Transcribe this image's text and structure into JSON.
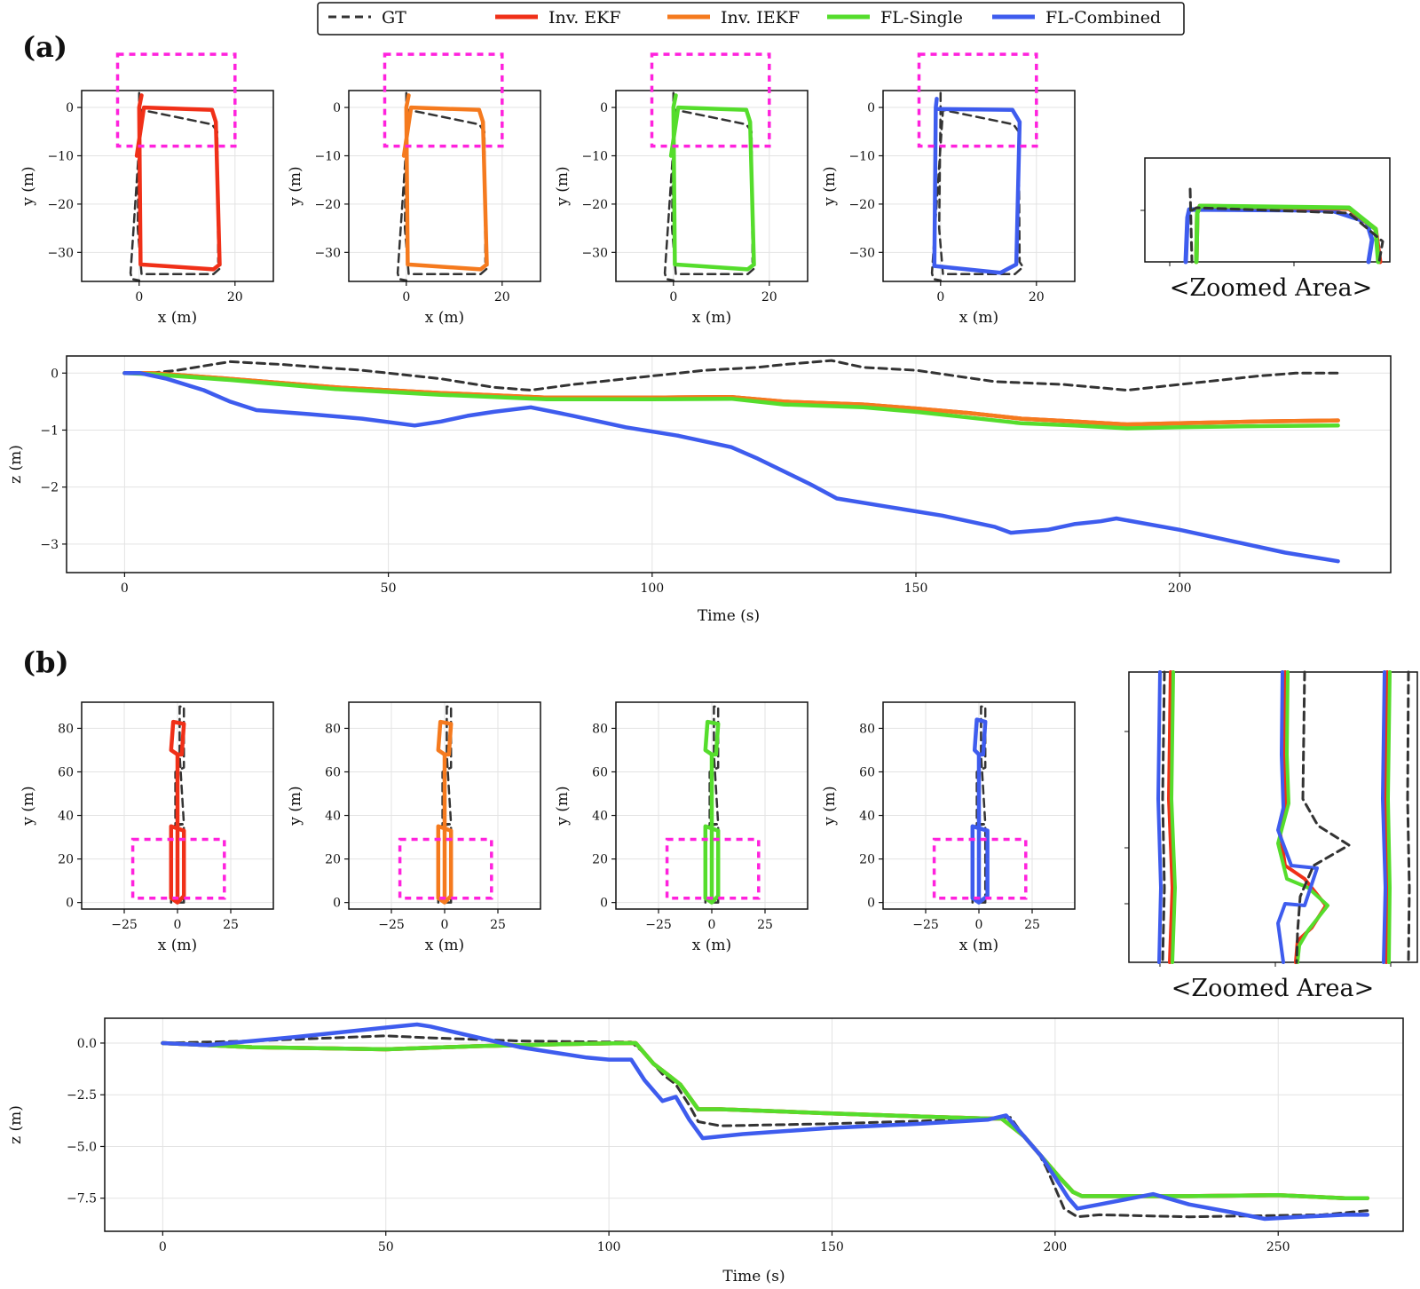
{
  "legend": [
    {
      "label": "GT",
      "color": "#333333",
      "dash": true
    },
    {
      "label": "Inv. EKF",
      "color": "#f03018",
      "dash": false
    },
    {
      "label": "Inv. IEKF",
      "color": "#f57a1e",
      "dash": false
    },
    {
      "label": "FL-Single",
      "color": "#55dd2c",
      "dash": false
    },
    {
      "label": "FL-Combined",
      "color": "#3e5cee",
      "dash": false
    }
  ],
  "panel_a": {
    "label": "(a)",
    "zoom_caption": "<Zoomed Area>",
    "xy_axes": {
      "xlabel": "x (m)",
      "ylabel": "y (m)",
      "xticks": [
        "0",
        "20"
      ],
      "yticks": [
        "0",
        "−10",
        "−20",
        "−30"
      ]
    },
    "z_axes": {
      "xlabel": "Time (s)",
      "ylabel": "z (m)",
      "xticks": [
        "0",
        "50",
        "100",
        "150",
        "200"
      ],
      "yticks": [
        "0",
        "−1",
        "−2",
        "−3"
      ]
    }
  },
  "panel_b": {
    "label": "(b)",
    "zoom_caption": "<Zoomed Area>",
    "xy_axes": {
      "xlabel": "x (m)",
      "ylabel": "y (m)",
      "xticks": [
        "−25",
        "0",
        "25"
      ],
      "yticks": [
        "0",
        "20",
        "40",
        "60",
        "80"
      ]
    },
    "z_axes": {
      "xlabel": "Time (s)",
      "ylabel": "z (m)",
      "xticks": [
        "0",
        "50",
        "100",
        "150",
        "200",
        "250"
      ],
      "yticks": [
        "0.0",
        "−2.5",
        "−5.0",
        "−7.5"
      ]
    }
  },
  "chart_data": [
    {
      "id": "a_xy",
      "type": "line",
      "xlabel": "x (m)",
      "ylabel": "y (m)",
      "xlim": [
        -12,
        28
      ],
      "ylim": [
        -36,
        3.5
      ],
      "subplots_series": [
        "Inv. EKF",
        "Inv. IEKF",
        "FL-Single",
        "FL-Combined"
      ],
      "series": [
        {
          "name": "GT",
          "x": [
            0,
            0,
            -0.3,
            0.5,
            15.5,
            17.2,
            16.5,
            16.3,
            15.2,
            0.5,
            -1.8,
            -1.5,
            0
          ],
          "y": [
            3,
            0,
            -25,
            -34.5,
            -34.5,
            -33,
            -32,
            -5,
            -3.5,
            -0.5,
            -34.3,
            -35.5,
            -35.8
          ]
        },
        {
          "name": "Inv. EKF",
          "x": [
            0.5,
            0,
            0.3,
            15.5,
            16.8,
            16,
            15.2,
            1,
            -0.5
          ],
          "y": [
            2.5,
            0,
            -32.5,
            -33.5,
            -32.5,
            -3,
            -0.5,
            0,
            -10
          ]
        },
        {
          "name": "Inv. IEKF",
          "x": [
            0.5,
            0,
            0.3,
            15.5,
            16.8,
            16,
            15.2,
            1,
            -0.5
          ],
          "y": [
            2.5,
            0,
            -32.5,
            -33.5,
            -32.5,
            -3,
            -0.5,
            0,
            -10
          ]
        },
        {
          "name": "FL-Single",
          "x": [
            0.5,
            0,
            0.3,
            15.5,
            16.8,
            16,
            15.2,
            1,
            -0.5
          ],
          "y": [
            2.5,
            0,
            -32.5,
            -33.5,
            -32.5,
            -3,
            -0.5,
            0,
            -10
          ]
        },
        {
          "name": "FL-Combined",
          "x": [
            -0.8,
            -1,
            -1.3,
            12.5,
            15.8,
            16.5,
            15,
            -0.5
          ],
          "y": [
            1.8,
            0,
            -32.8,
            -34.2,
            -32.5,
            -3,
            -0.5,
            -0.3
          ]
        }
      ]
    },
    {
      "id": "a_z",
      "type": "line",
      "xlabel": "Time (s)",
      "ylabel": "z (m)",
      "xlim": [
        -11,
        240
      ],
      "ylim": [
        -3.5,
        0.3
      ],
      "series": [
        {
          "name": "GT",
          "x": [
            0,
            5,
            10,
            20,
            30,
            40,
            45,
            50,
            60,
            70,
            77,
            85,
            100,
            110,
            120,
            125,
            134,
            140,
            150,
            165,
            178,
            190,
            200,
            210,
            215,
            222,
            230
          ],
          "y": [
            0,
            0,
            0.05,
            0.2,
            0.15,
            0.08,
            0.05,
            0,
            -0.1,
            -0.25,
            -0.3,
            -0.2,
            -0.05,
            0.05,
            0.1,
            0.15,
            0.22,
            0.1,
            0.05,
            -0.15,
            -0.2,
            -0.3,
            -0.2,
            -0.1,
            -0.05,
            0,
            0
          ]
        },
        {
          "name": "Inv. EKF",
          "x": [
            0,
            5,
            20,
            40,
            60,
            80,
            100,
            115,
            125,
            140,
            150,
            160,
            170,
            180,
            190,
            200,
            215,
            230
          ],
          "y": [
            0,
            0,
            -0.1,
            -0.25,
            -0.35,
            -0.43,
            -0.43,
            -0.42,
            -0.5,
            -0.55,
            -0.62,
            -0.7,
            -0.8,
            -0.85,
            -0.9,
            -0.88,
            -0.85,
            -0.83
          ]
        },
        {
          "name": "Inv. IEKF",
          "x": [
            0,
            5,
            20,
            40,
            60,
            80,
            100,
            115,
            125,
            140,
            150,
            160,
            170,
            180,
            190,
            200,
            215,
            230
          ],
          "y": [
            0,
            0,
            -0.1,
            -0.25,
            -0.35,
            -0.43,
            -0.43,
            -0.42,
            -0.5,
            -0.55,
            -0.62,
            -0.7,
            -0.8,
            -0.85,
            -0.9,
            -0.88,
            -0.85,
            -0.83
          ]
        },
        {
          "name": "FL-Single",
          "x": [
            0,
            5,
            20,
            40,
            60,
            80,
            100,
            115,
            125,
            140,
            150,
            160,
            170,
            180,
            190,
            200,
            215,
            230
          ],
          "y": [
            0,
            -0.02,
            -0.12,
            -0.28,
            -0.38,
            -0.46,
            -0.46,
            -0.45,
            -0.55,
            -0.6,
            -0.68,
            -0.78,
            -0.88,
            -0.92,
            -0.97,
            -0.95,
            -0.93,
            -0.92
          ]
        },
        {
          "name": "FL-Combined",
          "x": [
            0,
            3,
            8,
            15,
            20,
            25,
            35,
            45,
            55,
            60,
            65,
            70,
            77,
            85,
            95,
            105,
            115,
            120,
            130,
            135,
            145,
            155,
            165,
            168,
            175,
            180,
            185,
            188,
            200,
            210,
            220,
            230
          ],
          "y": [
            0,
            0,
            -0.1,
            -0.3,
            -0.5,
            -0.65,
            -0.72,
            -0.8,
            -0.92,
            -0.85,
            -0.75,
            -0.68,
            -0.6,
            -0.75,
            -0.95,
            -1.1,
            -1.3,
            -1.5,
            -1.95,
            -2.2,
            -2.35,
            -2.5,
            -2.7,
            -2.8,
            -2.75,
            -2.65,
            -2.6,
            -2.55,
            -2.75,
            -2.95,
            -3.15,
            -3.3
          ]
        }
      ]
    },
    {
      "id": "b_xy",
      "type": "line",
      "xlabel": "x (m)",
      "ylabel": "y (m)",
      "xlim": [
        -45,
        45
      ],
      "ylim": [
        -3,
        92
      ],
      "series": [
        {
          "name": "GT",
          "x": [
            3,
            3,
            -1,
            -1,
            3,
            3,
            1,
            1,
            3,
            -3,
            -3,
            3
          ],
          "y": [
            0,
            36,
            36,
            60,
            62,
            90,
            90,
            68,
            36,
            35,
            0,
            0
          ]
        },
        {
          "name": "Inv. EKF",
          "x": [
            0,
            3,
            3,
            -3,
            -3,
            0,
            0,
            -3,
            -2,
            3,
            2,
            0
          ],
          "y": [
            0,
            3,
            33,
            35,
            2,
            0,
            68,
            70,
            83,
            82,
            68,
            68
          ]
        },
        {
          "name": "Inv. IEKF",
          "x": [
            0,
            3,
            3,
            -3,
            -3,
            0,
            0,
            -3,
            -2,
            3,
            2,
            0
          ],
          "y": [
            0,
            3,
            33,
            35,
            2,
            0,
            68,
            70,
            83,
            82,
            68,
            68
          ]
        },
        {
          "name": "FL-Single",
          "x": [
            0,
            3,
            3,
            -3,
            -3,
            0,
            0,
            -3,
            -2,
            3,
            2,
            0
          ],
          "y": [
            0,
            3,
            33,
            35,
            2,
            0,
            68,
            70,
            83,
            82,
            68,
            68
          ]
        },
        {
          "name": "FL-Combined",
          "x": [
            0,
            4,
            4,
            -3,
            -3,
            0,
            0,
            -2,
            -1,
            3,
            2,
            0
          ],
          "y": [
            0,
            3,
            33,
            35,
            2,
            0,
            68,
            70,
            84,
            83,
            68,
            68
          ]
        }
      ]
    },
    {
      "id": "b_z",
      "type": "line",
      "xlabel": "Time (s)",
      "ylabel": "z (m)",
      "xlim": [
        -13,
        278
      ],
      "ylim": [
        -9.1,
        1.2
      ],
      "series": [
        {
          "name": "GT",
          "x": [
            0,
            20,
            50,
            60,
            80,
            100,
            105,
            108,
            112,
            115,
            118,
            120,
            125,
            150,
            180,
            188,
            190,
            193,
            196,
            198,
            200,
            202,
            205,
            210,
            230,
            260,
            270
          ],
          "y": [
            0,
            0.1,
            0.35,
            0.25,
            0.1,
            0.05,
            0.05,
            -0.5,
            -1.5,
            -2,
            -3,
            -3.8,
            -4,
            -3.9,
            -3.7,
            -3.6,
            -3.6,
            -4.5,
            -5.2,
            -6,
            -7,
            -8,
            -8.4,
            -8.3,
            -8.4,
            -8.3,
            -8.1
          ]
        },
        {
          "name": "Inv. EKF",
          "x": [
            0,
            20,
            50,
            70,
            90,
            104,
            106,
            110,
            113,
            116,
            120,
            125,
            150,
            170,
            185,
            188,
            193,
            197,
            201,
            204,
            206,
            210,
            230,
            250,
            265,
            270
          ],
          "y": [
            0,
            -0.2,
            -0.3,
            -0.15,
            -0.05,
            0,
            0,
            -1,
            -1.5,
            -2,
            -3.2,
            -3.2,
            -3.4,
            -3.55,
            -3.65,
            -3.65,
            -4.5,
            -5.5,
            -6.5,
            -7.2,
            -7.4,
            -7.4,
            -7.4,
            -7.35,
            -7.5,
            -7.5
          ]
        },
        {
          "name": "Inv. IEKF",
          "x": [
            0,
            20,
            50,
            70,
            90,
            104,
            106,
            110,
            113,
            116,
            120,
            125,
            150,
            170,
            185,
            188,
            193,
            197,
            201,
            204,
            206,
            210,
            230,
            250,
            265,
            270
          ],
          "y": [
            0,
            -0.2,
            -0.3,
            -0.15,
            -0.05,
            0,
            0,
            -1,
            -1.5,
            -2,
            -3.2,
            -3.2,
            -3.4,
            -3.55,
            -3.65,
            -3.65,
            -4.5,
            -5.5,
            -6.5,
            -7.2,
            -7.4,
            -7.4,
            -7.4,
            -7.35,
            -7.5,
            -7.5
          ]
        },
        {
          "name": "FL-Single",
          "x": [
            0,
            20,
            50,
            70,
            90,
            104,
            106,
            110,
            113,
            116,
            120,
            125,
            150,
            170,
            185,
            188,
            193,
            197,
            201,
            204,
            206,
            210,
            230,
            250,
            265,
            270
          ],
          "y": [
            0,
            -0.2,
            -0.3,
            -0.15,
            -0.05,
            0,
            0,
            -1,
            -1.5,
            -2,
            -3.2,
            -3.2,
            -3.4,
            -3.55,
            -3.65,
            -3.65,
            -4.5,
            -5.5,
            -6.5,
            -7.2,
            -7.4,
            -7.4,
            -7.4,
            -7.35,
            -7.5,
            -7.5
          ]
        },
        {
          "name": "FL-Combined",
          "x": [
            0,
            10,
            30,
            50,
            57,
            60,
            70,
            80,
            95,
            100,
            105,
            108,
            112,
            115,
            118,
            121,
            130,
            150,
            170,
            185,
            189,
            193,
            197,
            200,
            203,
            205,
            210,
            222,
            230,
            240,
            247,
            255,
            265,
            270
          ],
          "y": [
            0,
            -0.1,
            0.3,
            0.75,
            0.9,
            0.8,
            0.3,
            -0.2,
            -0.7,
            -0.8,
            -0.8,
            -1.8,
            -2.8,
            -2.6,
            -3.7,
            -4.6,
            -4.4,
            -4.1,
            -3.9,
            -3.7,
            -3.5,
            -4.5,
            -5.5,
            -6.5,
            -7.5,
            -8.0,
            -7.8,
            -7.3,
            -7.8,
            -8.2,
            -8.5,
            -8.4,
            -8.3,
            -8.3
          ]
        }
      ]
    }
  ]
}
